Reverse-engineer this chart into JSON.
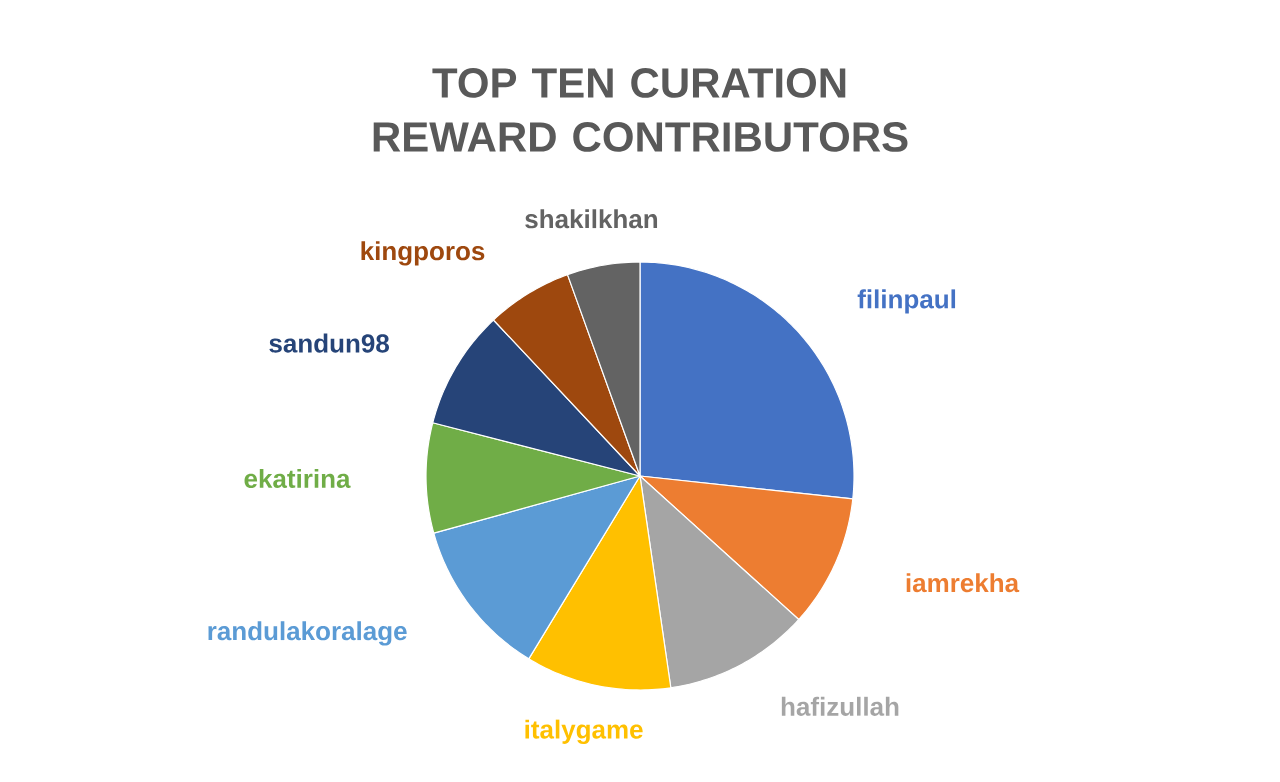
{
  "chart_data": {
    "type": "pie",
    "title": "TOP TEN CURATION REWARD CONTRIBUTORS",
    "categories": [
      "filinpaul",
      "iamrekha",
      "hafizullah",
      "italygame",
      "randulakoralage",
      "ekatirina",
      "sandun98",
      "kingporos",
      "shakilkhan"
    ],
    "values": [
      26.7,
      10,
      11,
      11,
      12,
      8.3,
      9,
      6.5,
      5.5
    ],
    "colors": [
      "#4472c4",
      "#ed7d31",
      "#a5a5a5",
      "#ffc000",
      "#5b9bd5",
      "#70ad47",
      "#264478",
      "#9e480e",
      "#636363"
    ]
  }
}
